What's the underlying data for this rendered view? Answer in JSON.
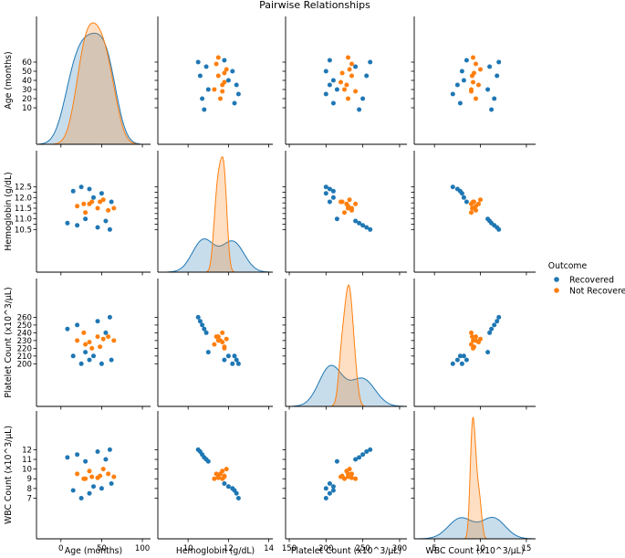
{
  "chart_data": {
    "type": "scatter",
    "title": "Pairwise Relationships",
    "hue_title": "Outcome",
    "colors": {
      "Recovered": "#1f77b4",
      "Not Recovered": "#ff7f0e"
    },
    "variables": [
      {
        "key": "age",
        "label": "Age (months)",
        "range": [
          -30,
          110
        ],
        "ticks": [
          0,
          50,
          100
        ],
        "yticks": [
          10,
          20,
          30,
          40,
          50,
          60
        ]
      },
      {
        "key": "hb",
        "label": "Hemoglobin (g/dL)",
        "range": [
          8.5,
          14.2
        ],
        "ticks": [
          10,
          12,
          14
        ],
        "yticks": [
          10.5,
          10.75,
          11.0,
          11.25,
          11.5,
          11.75,
          12.0,
          12.25,
          12.5
        ],
        "ytick_labels": [
          "10.5",
          "",
          "11.0",
          "",
          "11.5",
          "",
          "12.0",
          "",
          "12.5"
        ]
      },
      {
        "key": "plt",
        "label": "Platelet Count (x10^3/μL)",
        "range": [
          145,
          310
        ],
        "ticks": [
          150,
          200,
          250,
          300
        ],
        "yticks": [
          200,
          210,
          220,
          230,
          240,
          250,
          260
        ]
      },
      {
        "key": "wbc",
        "label": "WBC Count (x10^3/μL)",
        "range": [
          2.8,
          16
        ],
        "ticks": [
          5,
          10,
          15
        ],
        "yticks": [
          7,
          8,
          9,
          10,
          11,
          12
        ]
      }
    ],
    "series": [
      {
        "name": "Recovered",
        "points": [
          {
            "age": 60,
            "hb": 10.5,
            "plt": 260,
            "wbc": 12.0
          },
          {
            "age": 45,
            "hb": 10.6,
            "plt": 255,
            "wbc": 11.8
          },
          {
            "age": 20,
            "hb": 10.7,
            "plt": 250,
            "wbc": 11.5
          },
          {
            "age": 8,
            "hb": 10.8,
            "plt": 245,
            "wbc": 11.2
          },
          {
            "age": 55,
            "hb": 10.9,
            "plt": 240,
            "wbc": 11.0
          },
          {
            "age": 30,
            "hb": 11.0,
            "plt": 215,
            "wbc": 10.8
          },
          {
            "age": 62,
            "hb": 11.8,
            "plt": 205,
            "wbc": 8.5
          },
          {
            "age": 40,
            "hb": 12.0,
            "plt": 210,
            "wbc": 8.2
          },
          {
            "age": 50,
            "hb": 12.2,
            "plt": 200,
            "wbc": 8.0
          },
          {
            "age": 15,
            "hb": 12.3,
            "plt": 210,
            "wbc": 7.8
          },
          {
            "age": 35,
            "hb": 12.4,
            "plt": 205,
            "wbc": 7.5
          },
          {
            "age": 25,
            "hb": 12.5,
            "plt": 200,
            "wbc": 7.0
          }
        ]
      },
      {
        "name": "Not Recovered",
        "points": [
          {
            "age": 58,
            "hb": 11.4,
            "plt": 235,
            "wbc": 9.5
          },
          {
            "age": 65,
            "hb": 11.5,
            "plt": 230,
            "wbc": 9.2
          },
          {
            "age": 30,
            "hb": 11.3,
            "plt": 225,
            "wbc": 9.0
          },
          {
            "age": 38,
            "hb": 11.8,
            "plt": 220,
            "wbc": 9.2
          },
          {
            "age": 20,
            "hb": 11.6,
            "plt": 230,
            "wbc": 9.5
          },
          {
            "age": 45,
            "hb": 11.5,
            "plt": 235,
            "wbc": 9.1
          },
          {
            "age": 28,
            "hb": 11.7,
            "plt": 240,
            "wbc": 9.0
          },
          {
            "age": 52,
            "hb": 11.9,
            "plt": 232,
            "wbc": 10.0
          },
          {
            "age": 35,
            "hb": 11.7,
            "plt": 228,
            "wbc": 9.8
          },
          {
            "age": 48,
            "hb": 11.8,
            "plt": 222,
            "wbc": 9.3
          }
        ]
      }
    ]
  }
}
